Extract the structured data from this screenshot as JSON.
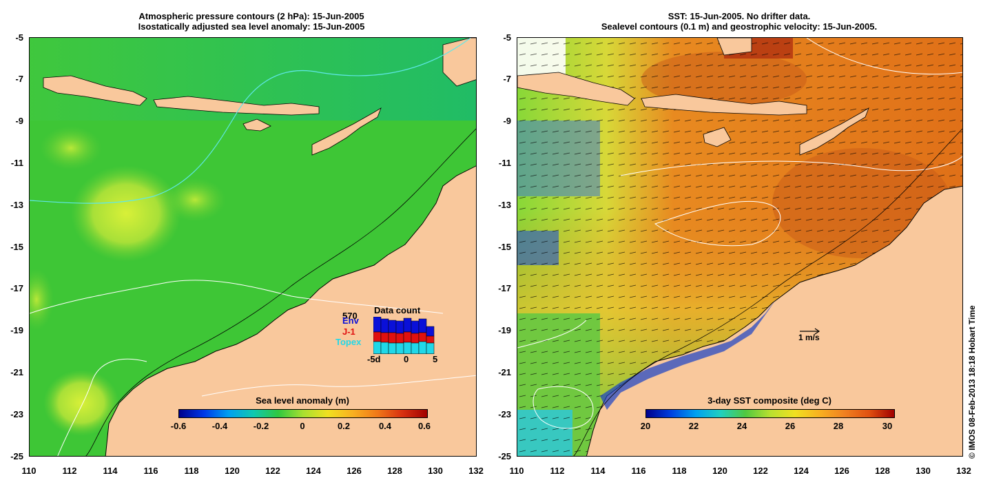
{
  "left_panel": {
    "title_line1": "Atmospheric pressure contours (2 hPa): 15-Jun-2005",
    "title_line2": "Isostatically adjusted sea level anomaly: 15-Jun-2005",
    "colorbar_title": "Sea level anomaly (m)",
    "colorbar_labels": [
      "-0.6",
      "-0.4",
      "-0.2",
      "0",
      "0.2",
      "0.4",
      "0.6"
    ],
    "data_count": {
      "title": "Data count",
      "max": "570",
      "legend": [
        {
          "label": "Env",
          "color": "#0a10d8"
        },
        {
          "label": "J-1",
          "color": "#e01010"
        },
        {
          "label": "Topex",
          "color": "#20d8e8"
        }
      ],
      "x_labels": [
        "-5d",
        "0",
        "5"
      ]
    }
  },
  "right_panel": {
    "title_line1": "SST: 15-Jun-2005. No drifter data.",
    "title_line2": "Sealevel contours (0.1 m) and geostrophic velocity: 15-Jun-2005.",
    "colorbar_title": "3-day SST composite (deg C)",
    "colorbar_labels": [
      "20",
      "22",
      "24",
      "26",
      "28",
      "30"
    ],
    "scale_arrow_label": "1 m/s"
  },
  "y_ticks": [
    "-5",
    "-7",
    "-9",
    "-11",
    "-13",
    "-15",
    "-17",
    "-19",
    "-21",
    "-23",
    "-25"
  ],
  "x_ticks": [
    "110",
    "112",
    "114",
    "116",
    "118",
    "120",
    "122",
    "124",
    "126",
    "128",
    "130",
    "132"
  ],
  "credit": "© IMOS 08-Feb-2013 18:18 Hobart Time",
  "colors": {
    "land": "#f9c89c",
    "sea_left": "#2fc42f",
    "sea_right": "#e07a18"
  }
}
